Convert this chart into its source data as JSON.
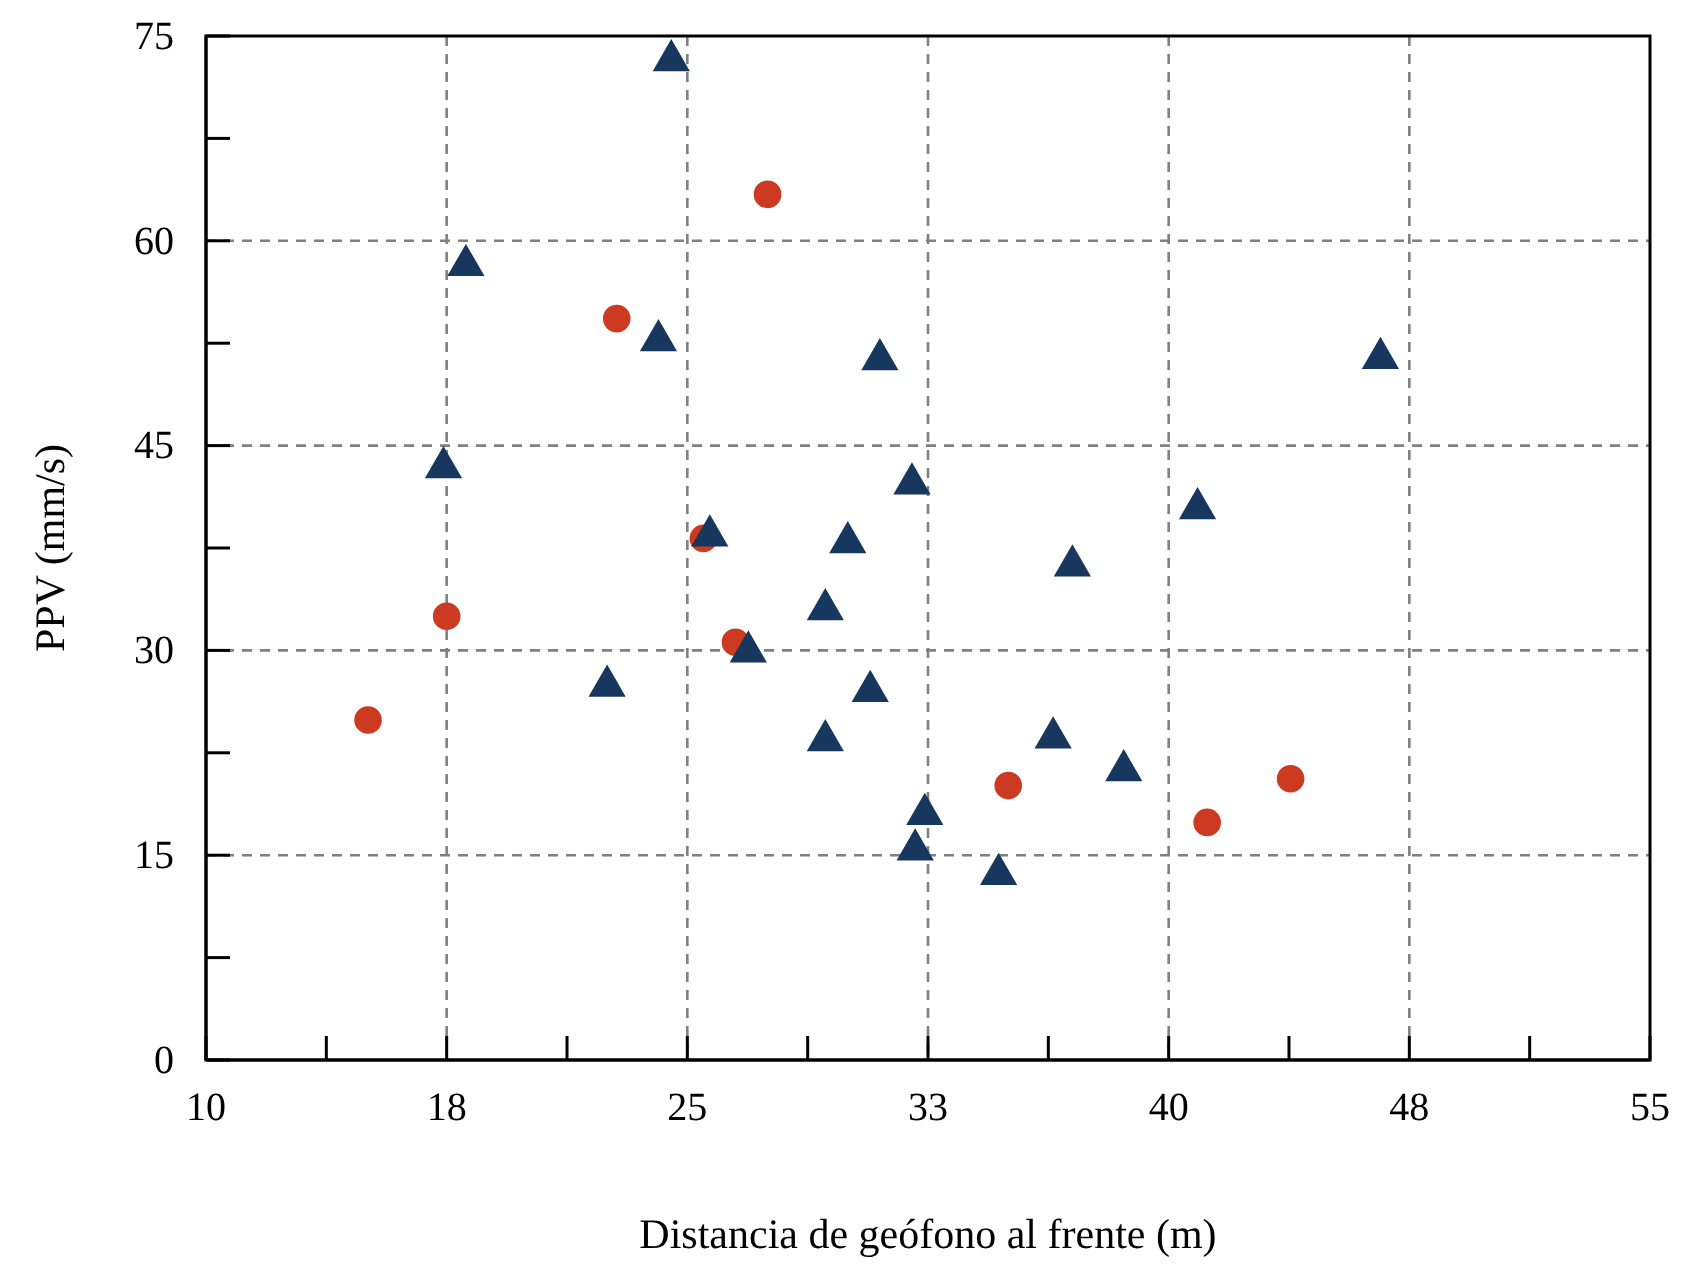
{
  "chart_data": {
    "type": "scatter",
    "xlabel": "Distancia de geófono al frente (m)",
    "ylabel": "PPV (mm/s)",
    "xlim": [
      10,
      55
    ],
    "ylim": [
      0,
      75
    ],
    "xticks": [
      10,
      {
        "value": 13.75,
        "label": null
      },
      {
        "value": 17.5,
        "label": "18"
      },
      {
        "value": 21.25,
        "label": null
      },
      25,
      {
        "value": 28.75,
        "label": null
      },
      {
        "value": 32.5,
        "label": "33"
      },
      {
        "value": 36.25,
        "label": null
      },
      40,
      {
        "value": 43.75,
        "label": null
      },
      {
        "value": 47.5,
        "label": "48"
      },
      {
        "value": 51.25,
        "label": null
      },
      55
    ],
    "yticks": [
      0,
      {
        "value": 7.5,
        "label": null
      },
      15,
      {
        "value": 22.5,
        "label": null
      },
      30,
      {
        "value": 37.5,
        "label": null
      },
      45,
      {
        "value": 52.5,
        "label": null
      },
      60,
      {
        "value": 67.5,
        "label": null
      },
      75
    ],
    "grid": true,
    "series": [
      {
        "color": "#17375e",
        "marker": "triangle",
        "x": [
          24.5,
          18.1,
          17.4,
          24.1,
          22.5,
          25.7,
          26.9,
          29.3,
          30.0,
          31.0,
          32.0,
          30.7,
          29.3,
          32.4,
          32.1,
          34.7,
          36.4,
          37.0,
          38.6,
          40.9,
          46.6
        ],
        "values": [
          73.2,
          58.2,
          43.4,
          52.7,
          27.4,
          38.4,
          29.9,
          33.0,
          37.9,
          51.3,
          42.2,
          27.0,
          23.4,
          18.0,
          15.4,
          13.6,
          23.6,
          36.2,
          21.2,
          40.4,
          51.4
        ]
      },
      {
        "color": "#cc3a22",
        "marker": "circle",
        "x": [
          15.05,
          17.5,
          22.8,
          27.5,
          25.5,
          26.5,
          35.0,
          41.2,
          43.8
        ],
        "values": [
          24.9,
          32.5,
          54.3,
          63.4,
          38.2,
          30.6,
          20.1,
          17.4,
          20.6
        ]
      }
    ]
  }
}
